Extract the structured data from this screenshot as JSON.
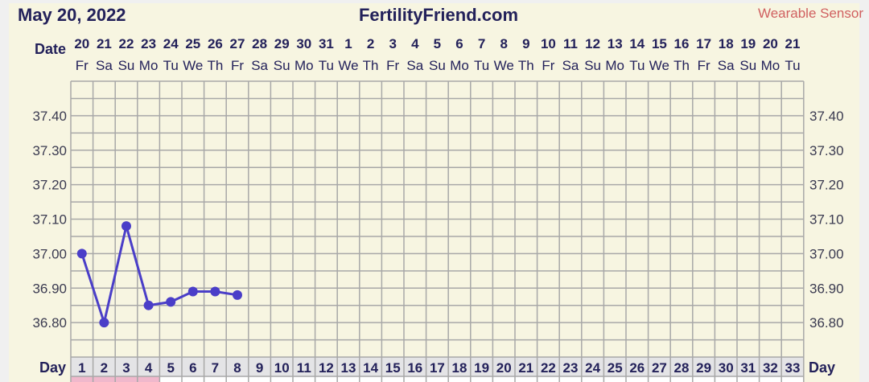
{
  "header": {
    "date": "May 20, 2022",
    "site": "FertilityFriend.com",
    "source": "Wearable Sensor"
  },
  "labels": {
    "date_row": "Date",
    "day_row": "Day"
  },
  "colors": {
    "line": "#4a3ec8",
    "text": "#23215a",
    "source": "#d06060",
    "grid": "#a8a8a8",
    "background": "#f7f5e1",
    "day_cell": "#e4e4e6",
    "menses": "#f0b8cc"
  },
  "chart_data": {
    "type": "line",
    "dates": [
      "20",
      "21",
      "22",
      "23",
      "24",
      "25",
      "26",
      "27",
      "28",
      "29",
      "30",
      "31",
      "1",
      "2",
      "3",
      "4",
      "5",
      "6",
      "7",
      "8",
      "9",
      "10",
      "11",
      "12",
      "13",
      "14",
      "15",
      "16",
      "17",
      "18",
      "19",
      "20",
      "21"
    ],
    "weekdays": [
      "Fr",
      "Sa",
      "Su",
      "Mo",
      "Tu",
      "We",
      "Th",
      "Fr",
      "Sa",
      "Su",
      "Mo",
      "Tu",
      "We",
      "Th",
      "Fr",
      "Sa",
      "Su",
      "Mo",
      "Tu",
      "We",
      "Th",
      "Fr",
      "Sa",
      "Su",
      "Mo",
      "Tu",
      "We",
      "Th",
      "Fr",
      "Sa",
      "Su",
      "Mo",
      "Tu"
    ],
    "days": [
      "1",
      "2",
      "3",
      "4",
      "5",
      "6",
      "7",
      "8",
      "9",
      "10",
      "11",
      "12",
      "13",
      "14",
      "15",
      "16",
      "17",
      "18",
      "19",
      "20",
      "21",
      "22",
      "23",
      "24",
      "25",
      "26",
      "27",
      "28",
      "29",
      "30",
      "31",
      "32",
      "33"
    ],
    "x": [
      1,
      2,
      3,
      4,
      5,
      6,
      7,
      8
    ],
    "values": [
      37.0,
      36.8,
      37.08,
      36.85,
      36.86,
      36.89,
      36.89,
      36.88
    ],
    "yticks": [
      "37.40",
      "37.30",
      "37.20",
      "37.10",
      "37.00",
      "36.90",
      "36.80"
    ],
    "ylim": [
      36.7,
      37.5
    ],
    "grid_step": 0.05,
    "grid": true,
    "menses_days": [
      1,
      2,
      3,
      4
    ]
  }
}
